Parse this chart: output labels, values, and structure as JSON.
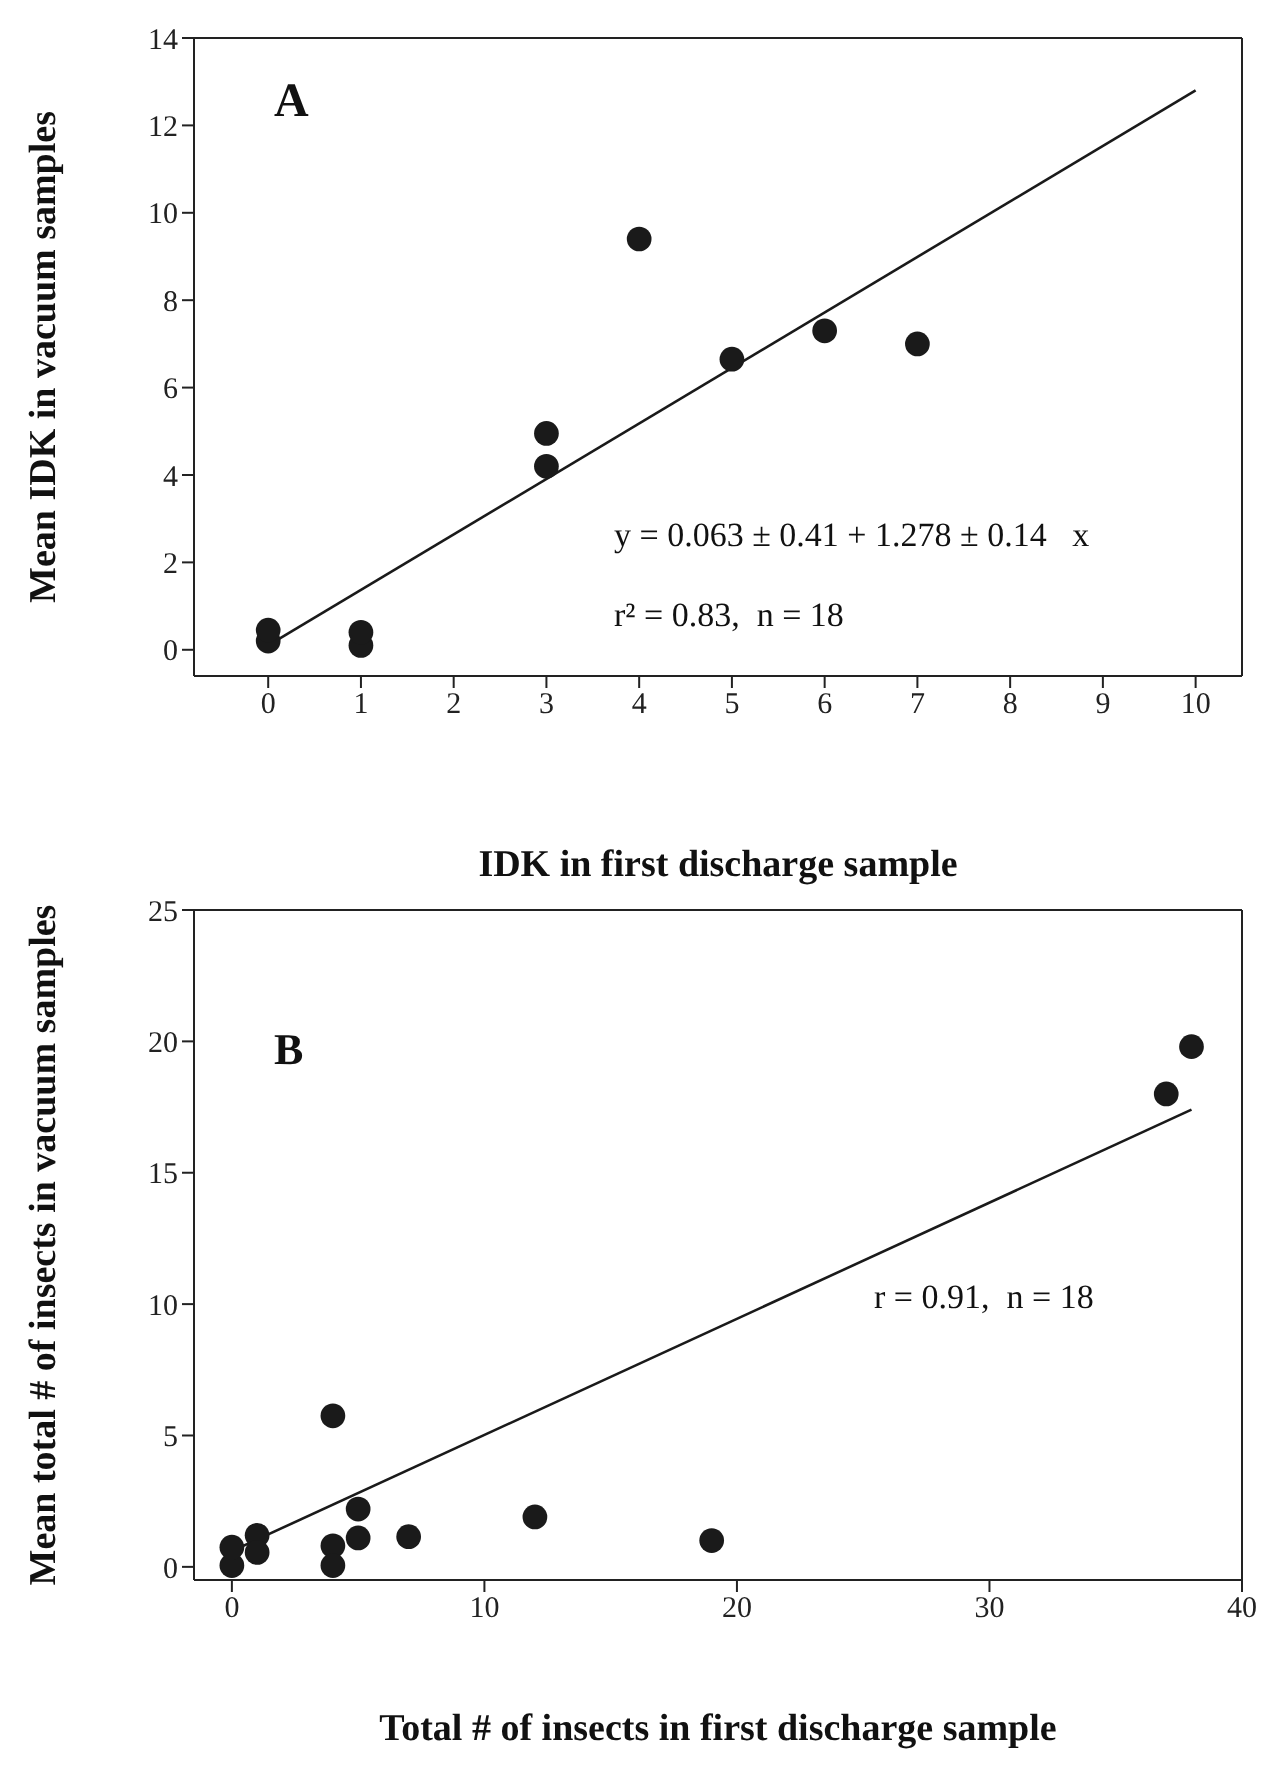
{
  "chart_data": [
    {
      "type": "scatter",
      "xlabel": "IDK in first discharge sample",
      "ylabel": "Mean IDK in vacuum samples",
      "xlim": [
        -0.8,
        10.5
      ],
      "xticks": [
        0,
        1,
        2,
        3,
        4,
        5,
        6,
        7,
        8,
        9,
        10
      ],
      "ylim": [
        -0.6,
        14
      ],
      "yticks": [
        0,
        2,
        4,
        6,
        8,
        10,
        12,
        14
      ],
      "annotations": [
        "A",
        "y = 0.063 ± 0.41 + 1.278 ± 0.14   x",
        "r² = 0.83,  n = 18"
      ],
      "series": [
        {
          "color": "#1a1a1a",
          "marker": "circle",
          "x": [
            0,
            0,
            1,
            1,
            3,
            3,
            4,
            5,
            6,
            7
          ],
          "values": [
            0.2,
            0.45,
            0.1,
            0.4,
            4.95,
            4.2,
            9.4,
            6.65,
            7.3,
            7.0
          ]
        },
        {
          "type": "line",
          "marker": "none",
          "color": "#1a1a1a",
          "x": [
            0,
            10
          ],
          "values": [
            0.1,
            12.8
          ]
        }
      ]
    },
    {
      "type": "scatter",
      "xlabel": "Total # of insects in first discharge sample",
      "ylabel": "Mean total # of insects in vacuum samples",
      "xlim": [
        -1.5,
        40
      ],
      "xticks": [
        0,
        10,
        20,
        30,
        40
      ],
      "ylim": [
        -0.5,
        25
      ],
      "yticks": [
        0,
        5,
        10,
        15,
        20,
        25
      ],
      "annotations": [
        "B",
        "r = 0.91,  n = 18"
      ],
      "series": [
        {
          "color": "#1a1a1a",
          "marker": "circle",
          "x": [
            0,
            0,
            1,
            1,
            4,
            4,
            4,
            5,
            5,
            7,
            12,
            19,
            37,
            38
          ],
          "values": [
            0.05,
            0.75,
            1.2,
            0.55,
            5.75,
            0.8,
            0.05,
            2.2,
            1.1,
            1.15,
            1.9,
            1.0,
            18.0,
            19.8
          ]
        },
        {
          "type": "line",
          "marker": "none",
          "color": "#1a1a1a",
          "x": [
            0,
            38
          ],
          "values": [
            0.6,
            17.4
          ]
        }
      ]
    }
  ]
}
